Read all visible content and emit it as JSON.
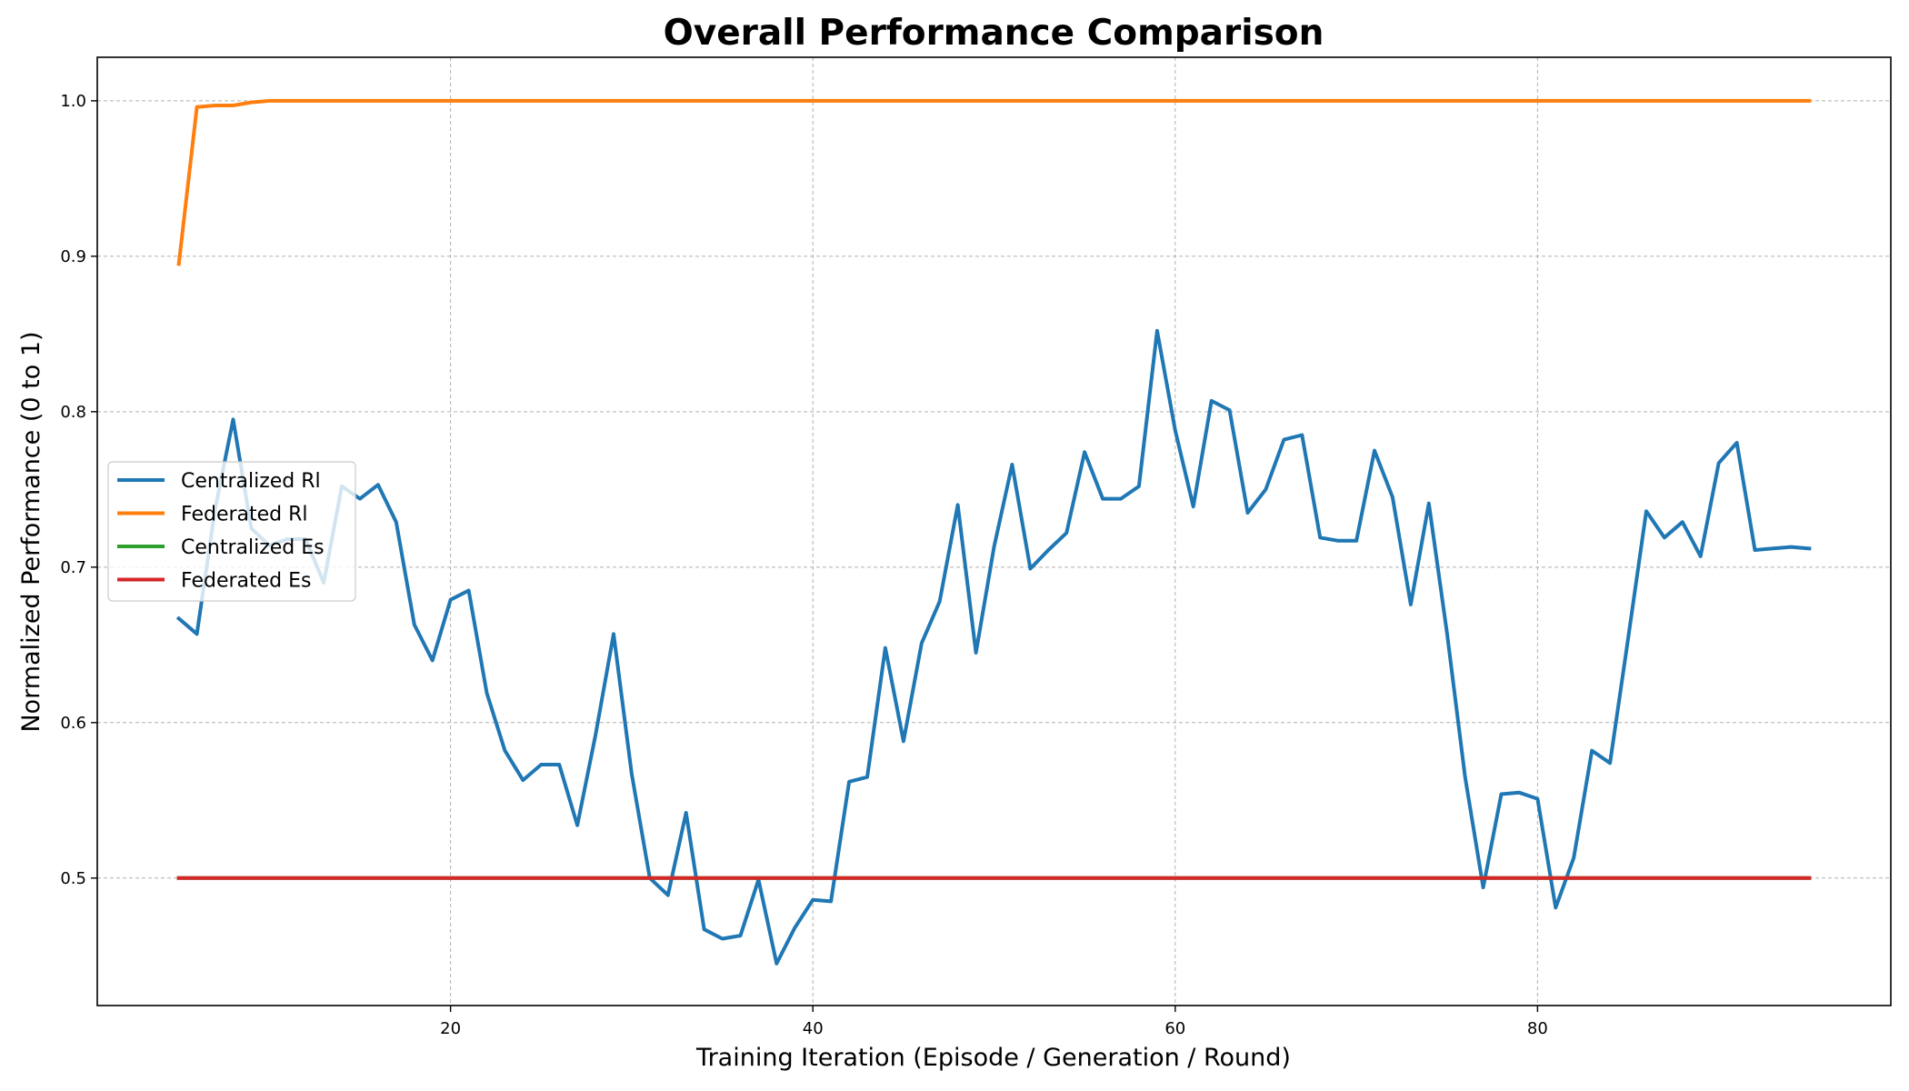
{
  "chart_data": {
    "type": "line",
    "title": "Overall Performance Comparison",
    "xlabel": "Training Iteration (Episode / Generation / Round)",
    "ylabel": "Normalized Performance (0 to 1)",
    "xlim": [
      0.5,
      99.5
    ],
    "ylim": [
      0.418,
      1.028
    ],
    "xticks": [
      20,
      40,
      60,
      80
    ],
    "yticks": [
      0.5,
      0.6,
      0.7,
      0.8,
      0.9,
      1.0
    ],
    "xtick_labels": [
      "20",
      "40",
      "60",
      "80"
    ],
    "ytick_labels": [
      "0.5",
      "0.6",
      "0.7",
      "0.8",
      "0.9",
      "1.0"
    ],
    "grid": true,
    "legend_position": "center-left",
    "x": [
      5,
      6,
      7,
      8,
      9,
      10,
      11,
      12,
      13,
      14,
      15,
      16,
      17,
      18,
      19,
      20,
      21,
      22,
      23,
      24,
      25,
      26,
      27,
      28,
      29,
      30,
      31,
      32,
      33,
      34,
      35,
      36,
      37,
      38,
      39,
      40,
      41,
      42,
      43,
      44,
      45,
      46,
      47,
      48,
      49,
      50,
      51,
      52,
      53,
      54,
      55,
      56,
      57,
      58,
      59,
      60,
      61,
      62,
      63,
      64,
      65,
      66,
      67,
      68,
      69,
      70,
      71,
      72,
      73,
      74,
      75,
      76,
      77,
      78,
      79,
      80,
      81,
      82,
      83,
      84,
      85,
      86,
      87,
      88,
      89,
      90,
      91,
      92,
      93,
      94,
      95
    ],
    "series": [
      {
        "name": "Centralized Rl",
        "color": "#1f77b4",
        "values": [
          0.667,
          0.657,
          0.737,
          0.795,
          0.725,
          0.714,
          0.718,
          0.718,
          0.69,
          0.752,
          0.744,
          0.753,
          0.729,
          0.663,
          0.64,
          0.679,
          0.685,
          0.619,
          0.582,
          0.563,
          0.573,
          0.573,
          0.534,
          0.592,
          0.657,
          0.567,
          0.5,
          0.489,
          0.542,
          0.467,
          0.461,
          0.463,
          0.499,
          0.445,
          0.468,
          0.486,
          0.485,
          0.562,
          0.565,
          0.648,
          0.588,
          0.651,
          0.678,
          0.74,
          0.645,
          0.713,
          0.766,
          0.699,
          0.711,
          0.722,
          0.774,
          0.744,
          0.744,
          0.752,
          0.852,
          0.788,
          0.739,
          0.807,
          0.801,
          0.735,
          0.75,
          0.782,
          0.785,
          0.719,
          0.717,
          0.717,
          0.775,
          0.745,
          0.676,
          0.741,
          0.658,
          0.565,
          0.494,
          0.554,
          0.555,
          0.551,
          0.481,
          0.513,
          0.582,
          0.574,
          0.654,
          0.736,
          0.719,
          0.729,
          0.707,
          0.767,
          0.78,
          0.711,
          0.712,
          0.713,
          0.712
        ]
      },
      {
        "name": "Federated Rl",
        "color": "#ff7f0e",
        "values": [
          0.895,
          0.996,
          0.997,
          0.997,
          0.999,
          1.0,
          1.0,
          1.0,
          1.0,
          1.0,
          1.0,
          1.0,
          1.0,
          1.0,
          1.0,
          1.0,
          1.0,
          1.0,
          1.0,
          1.0,
          1.0,
          1.0,
          1.0,
          1.0,
          1.0,
          1.0,
          1.0,
          1.0,
          1.0,
          1.0,
          1.0,
          1.0,
          1.0,
          1.0,
          1.0,
          1.0,
          1.0,
          1.0,
          1.0,
          1.0,
          1.0,
          1.0,
          1.0,
          1.0,
          1.0,
          1.0,
          1.0,
          1.0,
          1.0,
          1.0,
          1.0,
          1.0,
          1.0,
          1.0,
          1.0,
          1.0,
          1.0,
          1.0,
          1.0,
          1.0,
          1.0,
          1.0,
          1.0,
          1.0,
          1.0,
          1.0,
          1.0,
          1.0,
          1.0,
          1.0,
          1.0,
          1.0,
          1.0,
          1.0,
          1.0,
          1.0,
          1.0,
          1.0,
          1.0,
          1.0,
          1.0,
          1.0,
          1.0,
          1.0,
          1.0,
          1.0,
          1.0,
          1.0,
          1.0,
          1.0,
          1.0
        ]
      },
      {
        "name": "Centralized Es",
        "color": "#2ca02c",
        "values": [
          0.5,
          0.5,
          0.5,
          0.5,
          0.5,
          0.5,
          0.5,
          0.5,
          0.5,
          0.5,
          0.5,
          0.5,
          0.5,
          0.5,
          0.5,
          0.5,
          0.5,
          0.5,
          0.5,
          0.5,
          0.5,
          0.5,
          0.5,
          0.5,
          0.5,
          0.5,
          0.5,
          0.5,
          0.5,
          0.5,
          0.5,
          0.5,
          0.5,
          0.5,
          0.5,
          0.5,
          0.5,
          0.5,
          0.5,
          0.5,
          0.5,
          0.5,
          0.5,
          0.5,
          0.5,
          0.5,
          0.5,
          0.5,
          0.5,
          0.5,
          0.5,
          0.5,
          0.5,
          0.5,
          0.5,
          0.5,
          0.5,
          0.5,
          0.5,
          0.5,
          0.5,
          0.5,
          0.5,
          0.5,
          0.5,
          0.5,
          0.5,
          0.5,
          0.5,
          0.5,
          0.5,
          0.5,
          0.5,
          0.5,
          0.5,
          0.5,
          0.5,
          0.5,
          0.5,
          0.5,
          0.5,
          0.5,
          0.5,
          0.5,
          0.5,
          0.5,
          0.5,
          0.5,
          0.5,
          0.5,
          0.5
        ]
      },
      {
        "name": "Federated Es",
        "color": "#d62728",
        "values": [
          0.5,
          0.5,
          0.5,
          0.5,
          0.5,
          0.5,
          0.5,
          0.5,
          0.5,
          0.5,
          0.5,
          0.5,
          0.5,
          0.5,
          0.5,
          0.5,
          0.5,
          0.5,
          0.5,
          0.5,
          0.5,
          0.5,
          0.5,
          0.5,
          0.5,
          0.5,
          0.5,
          0.5,
          0.5,
          0.5,
          0.5,
          0.5,
          0.5,
          0.5,
          0.5,
          0.5,
          0.5,
          0.5,
          0.5,
          0.5,
          0.5,
          0.5,
          0.5,
          0.5,
          0.5,
          0.5,
          0.5,
          0.5,
          0.5,
          0.5,
          0.5,
          0.5,
          0.5,
          0.5,
          0.5,
          0.5,
          0.5,
          0.5,
          0.5,
          0.5,
          0.5,
          0.5,
          0.5,
          0.5,
          0.5,
          0.5,
          0.5,
          0.5,
          0.5,
          0.5,
          0.5,
          0.5,
          0.5,
          0.5,
          0.5,
          0.5,
          0.5,
          0.5,
          0.5,
          0.5,
          0.5,
          0.5,
          0.5,
          0.5,
          0.5,
          0.5,
          0.5,
          0.5,
          0.5,
          0.5,
          0.5
        ]
      }
    ]
  }
}
